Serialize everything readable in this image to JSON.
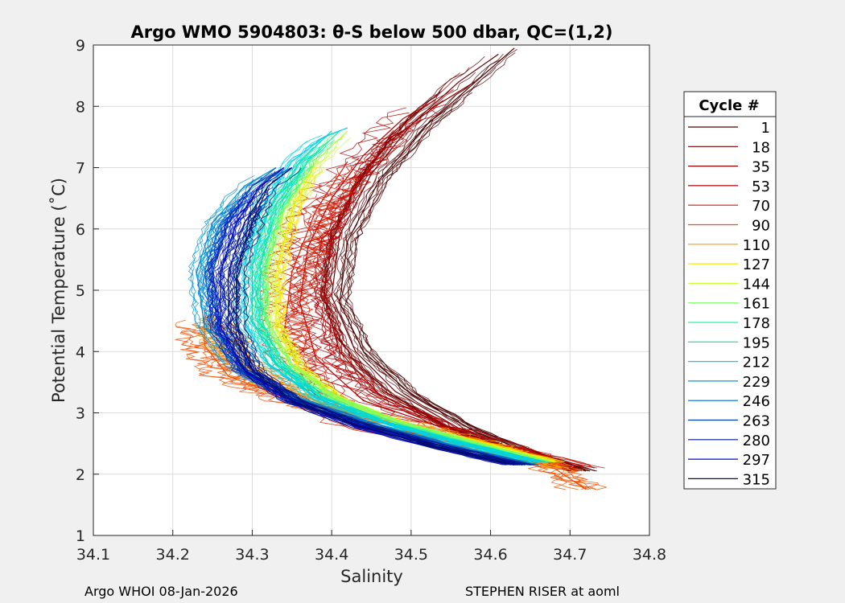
{
  "chart_data": {
    "type": "line",
    "title": "Argo WMO 5904803: θ-S below 500 dbar,  QC=(1,2)",
    "xlabel": "Salinity",
    "ylabel": "Potential Temperature (˚C)",
    "xlim": [
      34.1,
      34.8
    ],
    "ylim": [
      1,
      9
    ],
    "xticks": [
      "34.1",
      "34.2",
      "34.3",
      "34.4",
      "34.5",
      "34.6",
      "34.7",
      "34.8"
    ],
    "yticks": [
      "1",
      "2",
      "3",
      "4",
      "5",
      "6",
      "7",
      "8",
      "9"
    ],
    "grid": true,
    "legend": {
      "title": "Cycle #",
      "placement": "right",
      "entries": [
        {
          "label": "1",
          "color": "#4a0000"
        },
        {
          "label": "18",
          "color": "#6b0000"
        },
        {
          "label": "35",
          "color": "#8f0000"
        },
        {
          "label": "53",
          "color": "#b30000"
        },
        {
          "label": "70",
          "color": "#d81a00"
        },
        {
          "label": "90",
          "color": "#f05000"
        },
        {
          "label": "110",
          "color": "#ff9a00"
        },
        {
          "label": "127",
          "color": "#ffe600"
        },
        {
          "label": "144",
          "color": "#c8ff30"
        },
        {
          "label": "161",
          "color": "#7cff60"
        },
        {
          "label": "178",
          "color": "#30f0a0"
        },
        {
          "label": "195",
          "color": "#00e0c0"
        },
        {
          "label": "212",
          "color": "#00d0e8"
        },
        {
          "label": "229",
          "color": "#0098d8"
        },
        {
          "label": "246",
          "color": "#0068c8"
        },
        {
          "label": "263",
          "color": "#0040b0"
        },
        {
          "label": "280",
          "color": "#001890"
        },
        {
          "label": "297",
          "color": "#0008c8"
        },
        {
          "label": "315",
          "color": "#000a70"
        }
      ]
    },
    "series": [
      {
        "name": "1",
        "color": "#4a0000",
        "S": [
          34.72,
          34.66,
          34.58,
          34.5,
          34.44,
          34.41,
          34.42,
          34.46,
          34.52,
          34.59,
          34.63
        ],
        "T": [
          2.05,
          2.3,
          2.7,
          3.3,
          4.0,
          4.8,
          5.8,
          6.8,
          7.7,
          8.5,
          8.95
        ]
      },
      {
        "name": "18",
        "color": "#6b0000",
        "S": [
          34.71,
          34.64,
          34.56,
          34.48,
          34.43,
          34.4,
          34.41,
          34.45,
          34.5,
          34.56,
          34.61
        ],
        "T": [
          2.05,
          2.35,
          2.75,
          3.35,
          4.0,
          4.9,
          5.9,
          6.9,
          7.7,
          8.4,
          8.85
        ]
      },
      {
        "name": "35",
        "color": "#8f0000",
        "S": [
          34.7,
          34.62,
          34.54,
          34.46,
          34.41,
          34.39,
          34.4,
          34.43,
          34.47,
          34.53,
          34.58
        ],
        "T": [
          2.1,
          2.4,
          2.8,
          3.3,
          4.0,
          4.9,
          5.8,
          6.7,
          7.4,
          8.0,
          8.4
        ]
      },
      {
        "name": "53",
        "color": "#b30000",
        "S": [
          34.71,
          34.62,
          34.53,
          34.44,
          34.38,
          34.36,
          34.37,
          34.4,
          34.44,
          34.49,
          34.53
        ],
        "T": [
          2.1,
          2.4,
          2.8,
          3.2,
          3.9,
          4.8,
          5.7,
          6.5,
          7.2,
          7.8,
          8.1
        ]
      },
      {
        "name": "70",
        "color": "#d81a00",
        "S": [
          34.69,
          34.6,
          34.5,
          34.43,
          34.37,
          34.34,
          34.35,
          34.38,
          34.42
        ],
        "T": [
          2.15,
          2.45,
          2.65,
          2.75,
          3.4,
          4.3,
          5.3,
          6.3,
          7.1
        ]
      },
      {
        "name": "90",
        "color": "#f05000",
        "S": [
          34.72,
          34.68,
          34.58,
          34.46,
          34.35,
          34.27,
          34.24,
          34.24
        ],
        "T": [
          1.75,
          2.1,
          2.45,
          2.85,
          3.2,
          3.6,
          4.1,
          4.7
        ]
      },
      {
        "name": "110",
        "color": "#ff9a00",
        "S": [
          34.69,
          34.6,
          34.5,
          34.4,
          34.32,
          34.27,
          34.25
        ],
        "T": [
          2.1,
          2.45,
          2.8,
          3.1,
          3.5,
          4.0,
          4.6
        ]
      },
      {
        "name": "127",
        "color": "#ffe600",
        "S": [
          34.68,
          34.59,
          34.49,
          34.41,
          34.36,
          34.33,
          34.33,
          34.35,
          34.38
        ],
        "T": [
          2.2,
          2.5,
          2.8,
          3.2,
          3.7,
          4.4,
          5.3,
          6.3,
          7.1
        ]
      },
      {
        "name": "144",
        "color": "#c8ff30",
        "S": [
          34.67,
          34.58,
          34.48,
          34.4,
          34.35,
          34.32,
          34.32,
          34.34,
          34.38,
          34.42
        ],
        "T": [
          2.2,
          2.5,
          2.85,
          3.25,
          3.8,
          4.5,
          5.4,
          6.3,
          7.1,
          7.6
        ]
      },
      {
        "name": "161",
        "color": "#7cff60",
        "S": [
          34.67,
          34.58,
          34.48,
          34.4,
          34.34,
          34.31,
          34.31,
          34.33,
          34.37,
          34.41
        ],
        "T": [
          2.2,
          2.5,
          2.85,
          3.25,
          3.8,
          4.5,
          5.4,
          6.3,
          7.1,
          7.6
        ]
      },
      {
        "name": "178",
        "color": "#30f0a0",
        "S": [
          34.66,
          34.57,
          34.47,
          34.39,
          34.33,
          34.31,
          34.31,
          34.33,
          34.37,
          34.41
        ],
        "T": [
          2.2,
          2.5,
          2.85,
          3.25,
          3.8,
          4.5,
          5.4,
          6.3,
          7.1,
          7.6
        ]
      },
      {
        "name": "195",
        "color": "#00e0c0",
        "S": [
          34.66,
          34.56,
          34.46,
          34.38,
          34.33,
          34.3,
          34.3,
          34.32,
          34.36,
          34.4
        ],
        "T": [
          2.2,
          2.5,
          2.85,
          3.25,
          3.8,
          4.5,
          5.4,
          6.3,
          7.1,
          7.6
        ]
      },
      {
        "name": "212",
        "color": "#00d0e8",
        "S": [
          34.66,
          34.56,
          34.46,
          34.38,
          34.32,
          34.29,
          34.29,
          34.31,
          34.35,
          34.39,
          34.42
        ],
        "T": [
          2.2,
          2.5,
          2.85,
          3.25,
          3.8,
          4.5,
          5.4,
          6.3,
          7.1,
          7.5,
          7.65
        ]
      },
      {
        "name": "229",
        "color": "#0098d8",
        "S": [
          34.65,
          34.55,
          34.45,
          34.36,
          34.28,
          34.24,
          34.23,
          34.25,
          34.29,
          34.33
        ],
        "T": [
          2.15,
          2.45,
          2.8,
          3.2,
          3.7,
          4.4,
          5.3,
          6.1,
          6.7,
          7.0
        ]
      },
      {
        "name": "246",
        "color": "#0068c8",
        "S": [
          34.65,
          34.55,
          34.45,
          34.36,
          34.29,
          34.25,
          34.24,
          34.26,
          34.3,
          34.33
        ],
        "T": [
          2.15,
          2.45,
          2.8,
          3.2,
          3.7,
          4.4,
          5.3,
          6.1,
          6.7,
          7.0
        ]
      },
      {
        "name": "263",
        "color": "#0040b0",
        "S": [
          34.64,
          34.54,
          34.44,
          34.35,
          34.29,
          34.26,
          34.25,
          34.27,
          34.3,
          34.34
        ],
        "T": [
          2.15,
          2.45,
          2.8,
          3.2,
          3.7,
          4.4,
          5.3,
          6.1,
          6.7,
          7.0
        ]
      },
      {
        "name": "280",
        "color": "#001890",
        "S": [
          34.64,
          34.54,
          34.44,
          34.35,
          34.3,
          34.27,
          34.27,
          34.29,
          34.32,
          34.35
        ],
        "T": [
          2.15,
          2.45,
          2.8,
          3.2,
          3.7,
          4.4,
          5.3,
          6.1,
          6.7,
          7.0
        ]
      },
      {
        "name": "297",
        "color": "#0008c8",
        "S": [
          34.63,
          34.53,
          34.43,
          34.35,
          34.29,
          34.26,
          34.26,
          34.28,
          34.31,
          34.34
        ],
        "T": [
          2.15,
          2.45,
          2.8,
          3.2,
          3.7,
          4.4,
          5.3,
          6.1,
          6.7,
          7.0
        ]
      },
      {
        "name": "315",
        "color": "#000a70",
        "S": [
          34.63,
          34.53,
          34.43,
          34.35,
          34.3,
          34.28,
          34.28,
          34.3,
          34.32,
          34.35
        ],
        "T": [
          2.15,
          2.45,
          2.8,
          3.2,
          3.7,
          4.4,
          5.3,
          6.1,
          6.7,
          7.0
        ]
      }
    ]
  },
  "footer": {
    "left": "Argo WHOI 08-Jan-2026",
    "right": "STEPHEN RISER at aoml"
  }
}
